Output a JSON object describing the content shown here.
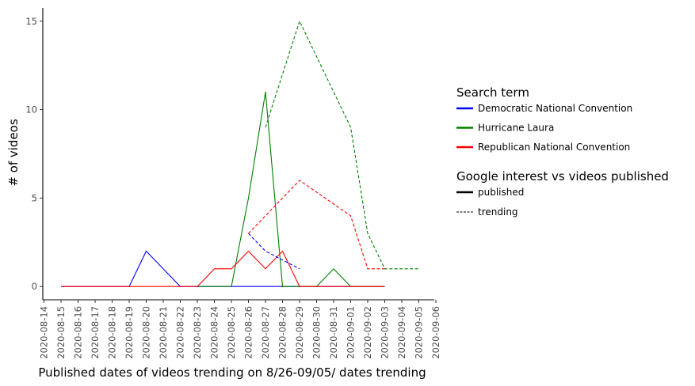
{
  "chart_data": {
    "type": "line",
    "xlabel": "Published dates of videos trending on 8/26-09/05/ dates trending",
    "ylabel": "# of videos",
    "ylim": [
      -0.75,
      15.75
    ],
    "yticks": [
      0,
      5,
      10,
      15
    ],
    "x_dates": [
      "2020-08-14",
      "2020-08-15",
      "2020-08-16",
      "2020-08-17",
      "2020-08-18",
      "2020-08-19",
      "2020-08-20",
      "2020-08-21",
      "2020-08-22",
      "2020-08-23",
      "2020-08-24",
      "2020-08-25",
      "2020-08-26",
      "2020-08-27",
      "2020-08-28",
      "2020-08-29",
      "2020-08-30",
      "2020-08-31",
      "2020-09-01",
      "2020-09-02",
      "2020-09-03",
      "2020-09-04",
      "2020-09-05",
      "2020-09-06"
    ],
    "grid": false,
    "legend_placement": "right",
    "legends": [
      {
        "title": "Search term",
        "entries": [
          {
            "label": "Democratic National Convention",
            "color": "#0000ff",
            "style": "solid"
          },
          {
            "label": "Hurricane Laura",
            "color": "#008000",
            "style": "solid"
          },
          {
            "label": "Republican National Convention",
            "color": "#ff0000",
            "style": "solid"
          }
        ]
      },
      {
        "title": "Google interest vs videos published",
        "entries": [
          {
            "label": "published",
            "color": "#000000",
            "style": "solid"
          },
          {
            "label": "trending",
            "color": "#000000",
            "style": "dashed"
          }
        ]
      }
    ],
    "series": [
      {
        "term": "Democratic National Convention",
        "kind": "published",
        "color": "#0000ff",
        "style": "solid",
        "points": [
          [
            "2020-08-15",
            0
          ],
          [
            "2020-08-16",
            0
          ],
          [
            "2020-08-17",
            0
          ],
          [
            "2020-08-18",
            0
          ],
          [
            "2020-08-19",
            0
          ],
          [
            "2020-08-20",
            2
          ],
          [
            "2020-08-21",
            1
          ],
          [
            "2020-08-22",
            0
          ],
          [
            "2020-08-23",
            0
          ],
          [
            "2020-08-24",
            0
          ],
          [
            "2020-08-25",
            0
          ],
          [
            "2020-08-26",
            0
          ],
          [
            "2020-08-27",
            0
          ],
          [
            "2020-08-28",
            0
          ],
          [
            "2020-08-29",
            0
          ],
          [
            "2020-08-30",
            0
          ],
          [
            "2020-08-31",
            0
          ],
          [
            "2020-09-01",
            0
          ],
          [
            "2020-09-02",
            0
          ],
          [
            "2020-09-03",
            0
          ]
        ]
      },
      {
        "term": "Hurricane Laura",
        "kind": "published",
        "color": "#008000",
        "style": "solid",
        "points": [
          [
            "2020-08-23",
            0
          ],
          [
            "2020-08-24",
            0
          ],
          [
            "2020-08-25",
            0
          ],
          [
            "2020-08-26",
            5
          ],
          [
            "2020-08-27",
            11
          ],
          [
            "2020-08-28",
            0
          ],
          [
            "2020-08-29",
            0
          ],
          [
            "2020-08-30",
            0
          ],
          [
            "2020-08-31",
            1
          ],
          [
            "2020-09-01",
            0
          ],
          [
            "2020-09-02",
            0
          ],
          [
            "2020-09-03",
            0
          ]
        ]
      },
      {
        "term": "Republican National Convention",
        "kind": "published",
        "color": "#ff0000",
        "style": "solid",
        "points": [
          [
            "2020-08-15",
            0
          ],
          [
            "2020-08-16",
            0
          ],
          [
            "2020-08-17",
            0
          ],
          [
            "2020-08-18",
            0
          ],
          [
            "2020-08-19",
            0
          ],
          [
            "2020-08-20",
            0
          ],
          [
            "2020-08-21",
            0
          ],
          [
            "2020-08-22",
            0
          ],
          [
            "2020-08-23",
            0
          ],
          [
            "2020-08-24",
            1
          ],
          [
            "2020-08-25",
            1
          ],
          [
            "2020-08-26",
            2
          ],
          [
            "2020-08-27",
            1
          ],
          [
            "2020-08-28",
            2
          ],
          [
            "2020-08-29",
            0
          ],
          [
            "2020-08-30",
            0
          ],
          [
            "2020-08-31",
            0
          ],
          [
            "2020-09-01",
            0
          ],
          [
            "2020-09-02",
            0
          ],
          [
            "2020-09-03",
            0
          ]
        ]
      },
      {
        "term": "Democratic National Convention",
        "kind": "trending",
        "color": "#0000ff",
        "style": "dashed",
        "points": [
          [
            "2020-08-26",
            3
          ],
          [
            "2020-08-27",
            2
          ],
          [
            "2020-08-28",
            1.5
          ],
          [
            "2020-08-29",
            1
          ]
        ]
      },
      {
        "term": "Hurricane Laura",
        "kind": "trending",
        "color": "#008000",
        "style": "dashed",
        "points": [
          [
            "2020-08-27",
            9
          ],
          [
            "2020-08-29",
            15
          ],
          [
            "2020-09-01",
            9
          ],
          [
            "2020-09-02",
            3
          ],
          [
            "2020-09-03",
            1
          ],
          [
            "2020-09-04",
            1
          ],
          [
            "2020-09-05",
            1
          ]
        ]
      },
      {
        "term": "Republican National Convention",
        "kind": "trending",
        "color": "#ff0000",
        "style": "dashed",
        "points": [
          [
            "2020-08-26",
            3
          ],
          [
            "2020-08-29",
            6
          ],
          [
            "2020-09-01",
            4
          ],
          [
            "2020-09-02",
            1
          ],
          [
            "2020-09-03",
            1
          ]
        ]
      }
    ]
  }
}
